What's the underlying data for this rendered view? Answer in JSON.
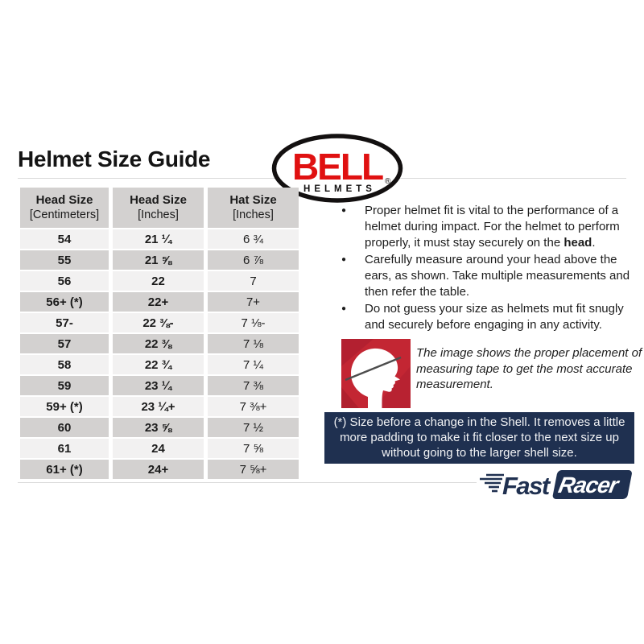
{
  "page": {
    "title": "Helmet Size Guide"
  },
  "bell_logo": {
    "brand": "BELL",
    "sub": "HELMETS",
    "reg": "®",
    "red": "#e01111"
  },
  "table": {
    "headers": [
      {
        "title": "Head Size",
        "unit": "[Centimeters]"
      },
      {
        "title": "Head Size",
        "unit": "[Inches]"
      },
      {
        "title": "Hat Size",
        "unit": "[Inches]"
      }
    ],
    "rows": [
      [
        "54",
        "21 ¼",
        "6 ¾"
      ],
      [
        "55",
        "21 ⅝",
        "6 ⅞"
      ],
      [
        "56",
        "22",
        "7"
      ],
      [
        "56+ (*)",
        "22+",
        "7+"
      ],
      [
        "57-",
        "22 ⅜-",
        "7 ⅛-"
      ],
      [
        "57",
        "22 ⅜",
        "7 ⅛"
      ],
      [
        "58",
        "22 ¾",
        "7 ¼"
      ],
      [
        "59",
        "23 ¼",
        "7 ⅜"
      ],
      [
        "59+ (*)",
        "23 ¼+",
        "7 ⅜+"
      ],
      [
        "60",
        "23 ⅝",
        "7 ½"
      ],
      [
        "61",
        "24",
        "7 ⅝"
      ],
      [
        "61+ (*)",
        "24+",
        "7 ⅝+"
      ]
    ]
  },
  "bullets": [
    {
      "lead": "Proper helmet fit is vital to the performance of a helmet during impact. For the helmet to perform properly, it must stay securely on the ",
      "bold": "head",
      "tail": "."
    },
    {
      "lead": "Carefully measure around your head above the ears, as shown. Take multiple measurements and then refer the table.",
      "bold": "",
      "tail": ""
    },
    {
      "lead": "Do not guess your size as helmets mut fit snugly and securely before engaging in any activity.",
      "bold": "",
      "tail": ""
    }
  ],
  "figure": {
    "caption": "The image shows the proper placement of a measuring tape to get the most accurate measurement."
  },
  "note": {
    "lines": [
      "(*) Size before a change in the Shell. It removes a little",
      "more padding to make it fit closer to the next size up",
      "without going to the larger shell size."
    ]
  },
  "footer_logo": {
    "fast": "Fast",
    "racer": "Racer"
  },
  "colors": {
    "navy": "#1f3050",
    "bell_red": "#e01111",
    "figure_red": "#c32633",
    "row_light": "#f2f1f1",
    "row_dark": "#d3d1d0",
    "divider": "#d9d9d9"
  }
}
